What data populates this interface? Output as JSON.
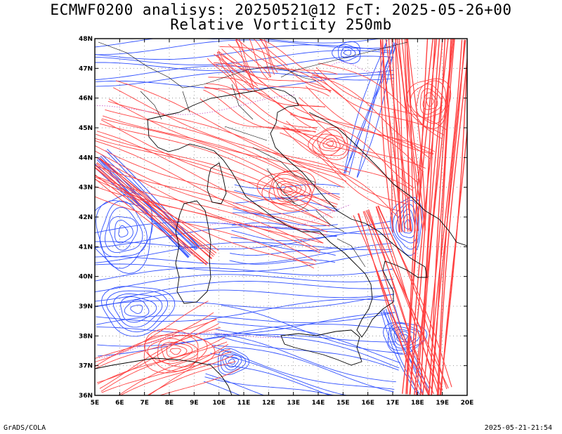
{
  "header": {
    "line1": "ECMWF0200 analisys: 20250521@12 FcT: 2025-05-26+00",
    "line2": "Relative Vorticity 250mb"
  },
  "footer": {
    "credit": "GrADS/COLA",
    "timestamp": "2025-05-21-21:54"
  },
  "map": {
    "lon_labels": [
      "5E",
      "6E",
      "7E",
      "8E",
      "9E",
      "10E",
      "11E",
      "12E",
      "13E",
      "14E",
      "15E",
      "16E",
      "17E",
      "18E",
      "19E",
      "20E"
    ],
    "lat_labels": [
      "36N",
      "37N",
      "38N",
      "39N",
      "40N",
      "41N",
      "42N",
      "43N",
      "44N",
      "45N",
      "46N",
      "47N",
      "48N"
    ],
    "positive_contour_color": "#ff4040",
    "negative_contour_color": "#3050ff",
    "zero_contour_color": "#d070d0",
    "grid_color": "#888888",
    "coast_color": "#000000"
  }
}
